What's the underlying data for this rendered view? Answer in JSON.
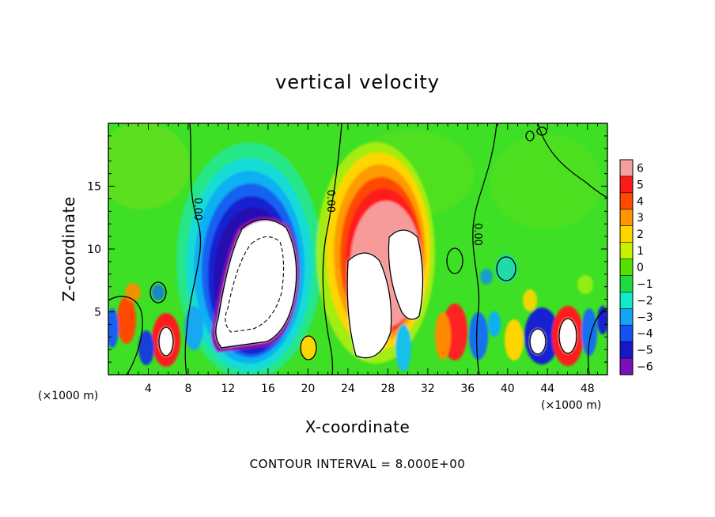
{
  "chart_data": {
    "type": "heatmap",
    "title": "vertical velocity",
    "xlabel": "X-coordinate",
    "ylabel": "Z-coordinate",
    "x_unit_left": "(×1000 m)",
    "x_unit_right": "(×1000 m)",
    "xlim": [
      0,
      50
    ],
    "ylim": [
      0,
      20
    ],
    "x_ticks": [
      4,
      8,
      12,
      16,
      20,
      24,
      28,
      32,
      36,
      40,
      44,
      48
    ],
    "y_ticks": [
      5,
      10,
      15
    ],
    "colorbar": {
      "ticks": [
        6,
        5,
        4,
        3,
        2,
        1,
        0,
        -1,
        -2,
        -3,
        -4,
        -5,
        -6
      ],
      "tick_labels": [
        "6",
        "5",
        "4",
        "3",
        "2",
        "1",
        "0",
        "−1",
        "−2",
        "−3",
        "−4",
        "−5",
        "−6"
      ],
      "range": [
        -6,
        6
      ],
      "colors": [
        "#f4a0a0",
        "#ff1a1a",
        "#ff4a00",
        "#ff9500",
        "#ffd500",
        "#c8f000",
        "#55e000",
        "#1edc3c",
        "#12eacc",
        "#10a6f2",
        "#1452f2",
        "#1618c8",
        "#7a10b8"
      ]
    },
    "contour_labels": [
      "0.00",
      "0.00",
      "0.00"
    ],
    "contour_interval_text": "CONTOUR INTERVAL = 8.000E+00",
    "features": [
      {
        "x": 15.5,
        "z": 8.0,
        "sign": "negative",
        "peak": -40
      },
      {
        "x": 25.5,
        "z": 6.0,
        "sign": "positive",
        "peak": 32
      },
      {
        "x": 29.3,
        "z": 8.5,
        "sign": "positive",
        "peak": 30
      },
      {
        "x": 46.0,
        "z": 3.2,
        "sign": "positive",
        "peak": 10
      },
      {
        "x": 43.2,
        "z": 2.6,
        "sign": "negative",
        "peak": -8
      },
      {
        "x": 6.0,
        "z": 2.4,
        "sign": "positive",
        "peak": 8
      },
      {
        "x": 34.5,
        "z": 3.2,
        "sign": "positive",
        "peak": 7
      },
      {
        "x": 9.8,
        "z": 3.4,
        "sign": "negative",
        "peak": -6
      }
    ]
  }
}
